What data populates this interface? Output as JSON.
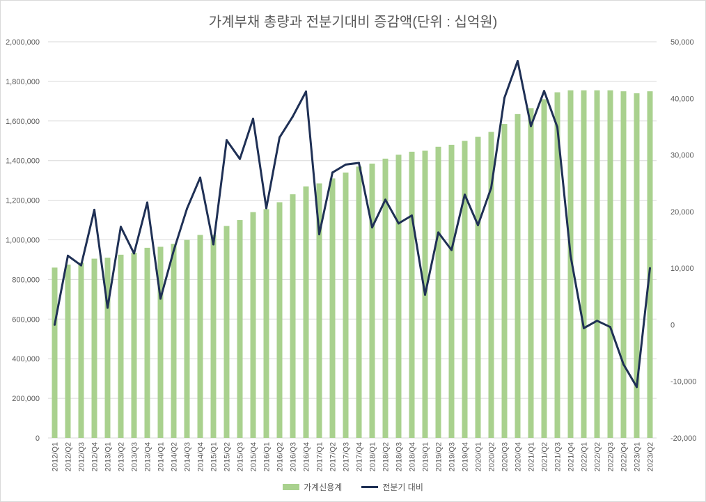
{
  "chart_data": {
    "type": "bar",
    "title": "가계부채 총량과 전분기대비 증감액(단위 : 십억원)",
    "categories": [
      "2012/Q1",
      "2012/Q2",
      "2012/Q3",
      "2012/Q4",
      "2013/Q1",
      "2013/Q2",
      "2013/Q3",
      "2013/Q4",
      "2014/Q1",
      "2014/Q2",
      "2014/Q3",
      "2014/Q4",
      "2015/Q1",
      "2015/Q2",
      "2015/Q3",
      "2015/Q4",
      "2016/Q1",
      "2016/Q2",
      "2016/Q3",
      "2016/Q4",
      "2017/Q1",
      "2017/Q2",
      "2017/Q3",
      "2017/Q4",
      "2018/Q1",
      "2018/Q2",
      "2018/Q3",
      "2018/Q4",
      "2019/Q1",
      "2019/Q2",
      "2019/Q3",
      "2019/Q4",
      "2020/Q1",
      "2020/Q2",
      "2020/Q3",
      "2020/Q4",
      "2021/Q1",
      "2021/Q2",
      "2021/Q3",
      "2021/Q4",
      "2022/Q1",
      "2022/Q2",
      "2022/Q3",
      "2022/Q4",
      "2023/Q1",
      "2023/Q2"
    ],
    "series": [
      {
        "name": "가계신용계",
        "type": "bar",
        "axis": "left",
        "color": "#a9d18e",
        "values": [
          860000,
          875000,
          885000,
          905000,
          910000,
          925000,
          935000,
          960000,
          965000,
          980000,
          1000000,
          1025000,
          1025000,
          1070000,
          1100000,
          1140000,
          1155000,
          1190000,
          1230000,
          1270000,
          1285000,
          1310000,
          1340000,
          1370000,
          1385000,
          1410000,
          1430000,
          1445000,
          1450000,
          1470000,
          1480000,
          1500000,
          1520000,
          1545000,
          1585000,
          1635000,
          1665000,
          1710000,
          1745000,
          1755000,
          1755000,
          1755000,
          1755000,
          1750000,
          1740000,
          1750000
        ]
      },
      {
        "name": "전분기 대비",
        "type": "line",
        "axis": "right",
        "color": "#1f3055",
        "values": [
          0,
          12200,
          10500,
          20300,
          3000,
          17300,
          12600,
          21600,
          4600,
          13100,
          20500,
          26000,
          14200,
          32600,
          29300,
          36400,
          20600,
          33100,
          36800,
          41200,
          16000,
          26900,
          28300,
          28600,
          17200,
          22100,
          17900,
          19300,
          5300,
          16300,
          13200,
          23000,
          17600,
          24200,
          40100,
          46600,
          35100,
          41300,
          34900,
          12200,
          -600,
          700,
          -400,
          -7000,
          -11000,
          10000
        ]
      }
    ],
    "y_left": {
      "min": 0,
      "max": 2000000,
      "step": 200000
    },
    "y_right": {
      "min": -20000,
      "max": 50000,
      "step": 10000
    },
    "grid": true,
    "legend": "bottom-center"
  }
}
